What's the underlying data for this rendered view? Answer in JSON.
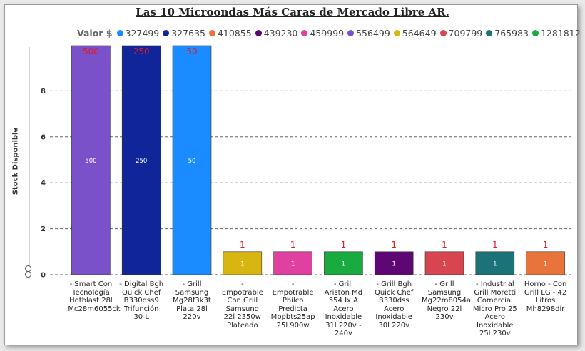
{
  "title": "Las 10 Microondas Más Caras de Mercado Libre AR.",
  "legend": {
    "title": "Valor $",
    "items": [
      {
        "label": "327499",
        "color": "#1a8cff"
      },
      {
        "label": "327635",
        "color": "#10259a"
      },
      {
        "label": "410855",
        "color": "#e8743b"
      },
      {
        "label": "439230",
        "color": "#5e0673"
      },
      {
        "label": "459999",
        "color": "#e040a0"
      },
      {
        "label": "556499",
        "color": "#7a51c9"
      },
      {
        "label": "564649",
        "color": "#d8b511"
      },
      {
        "label": "709799",
        "color": "#d64550"
      },
      {
        "label": "765983",
        "color": "#1c7377"
      },
      {
        "label": "1281812",
        "color": "#1aab40"
      }
    ]
  },
  "chart_data": {
    "type": "bar",
    "ylabel": "Stock Disponible",
    "xlabel": "",
    "ylim": [
      0,
      9
    ],
    "yticks": [
      0,
      2,
      4,
      6,
      8
    ],
    "grid": true,
    "legend_position": "top",
    "categories": [
      "- Smart Con Tecnología Hotblast 28l Mc28m6055ck",
      "- Digital Bgh Quick Chef B330dss9 Trifunción 30 L",
      "- Grill Samsung Mg28f3k3t Plata 28l 220v",
      "- Empotrable Con Grill Samsung 22l 2350w Plateado",
      "- Empotrable Philco Predicta Mppbts25ap 25l 900w",
      "- Grill Ariston Md 554 Ix A Acero Inoxidable 31l 220v - 240v",
      "- Grill Bgh Quick Chef B330dss Acero Inoxidable 30l 220v",
      "- Grill Samsung Mg22m8054a Negro 22l 230v",
      "- Industrial Grill Moretti Comercial Micro Pro 25 Acero Inoxidable 25l 230v",
      "Horno - Con Grill LG - 42 Litros Mh8298dir"
    ],
    "values": [
      500,
      250,
      50,
      1,
      1,
      1,
      1,
      1,
      1,
      1
    ],
    "value_labels": [
      "500",
      "250",
      "50",
      "1",
      "1",
      "1",
      "1",
      "1",
      "1",
      "1"
    ],
    "colors": [
      "#7a51c9",
      "#10259a",
      "#1a8cff",
      "#d8b511",
      "#e040a0",
      "#1aab40",
      "#5e0673",
      "#d64550",
      "#1c7377",
      "#e8743b"
    ]
  }
}
